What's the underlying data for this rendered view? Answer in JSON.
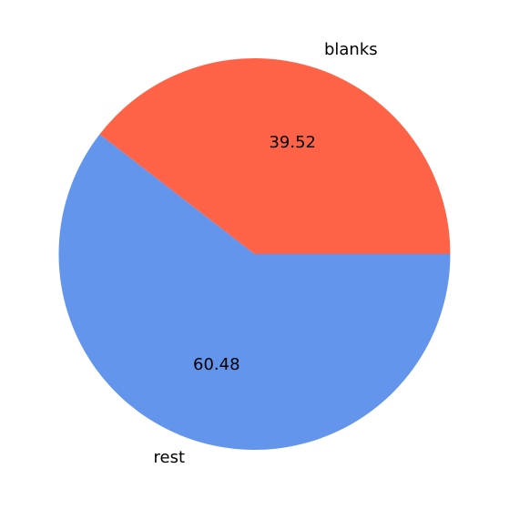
{
  "chart_data": {
    "type": "pie",
    "slices": [
      {
        "label": "blanks",
        "value": 39.52,
        "display": "39.52",
        "color": "#FF6347"
      },
      {
        "label": "rest",
        "value": 60.48,
        "display": "60.48",
        "color": "#6495ED"
      }
    ],
    "start_angle_deg": 0,
    "direction": "counterclockwise"
  }
}
